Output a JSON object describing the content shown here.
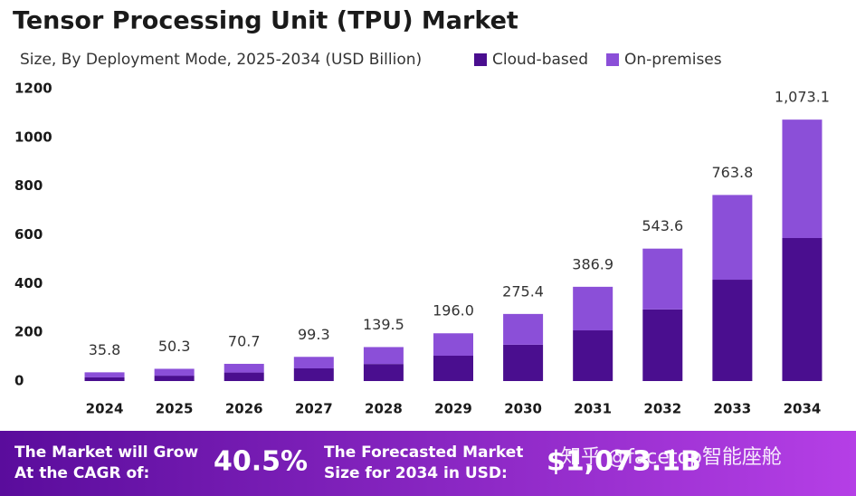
{
  "chart_data": {
    "type": "stacked-bar",
    "title": "Tensor Processing Unit (TPU) Market",
    "subtitle": "Size, By Deployment Mode, 2025-2034 (USD Billion)",
    "categories": [
      "2024",
      "2025",
      "2026",
      "2027",
      "2028",
      "2029",
      "2030",
      "2031",
      "2032",
      "2033",
      "2034"
    ],
    "series": [
      {
        "name": "Cloud-based",
        "color": "#4a0e8f",
        "values": [
          15,
          22,
          35,
          52,
          70,
          104,
          149,
          208,
          294,
          416,
          587
        ]
      },
      {
        "name": "On-premises",
        "color": "#8b4fd8",
        "values": [
          20.8,
          28.3,
          35.7,
          47.3,
          69.5,
          92,
          126.4,
          178.9,
          249.6,
          347.8,
          486.1
        ]
      }
    ],
    "totals": [
      35.8,
      50.3,
      70.7,
      99.3,
      139.5,
      196.0,
      275.4,
      386.9,
      543.6,
      763.8,
      1073.1
    ],
    "total_labels": [
      "35.8",
      "50.3",
      "70.7",
      "99.3",
      "139.5",
      "196.0",
      "275.4",
      "386.9",
      "543.6",
      "763.8",
      "1,073.1"
    ],
    "ylim": [
      0,
      1200
    ],
    "yticks": [
      0,
      200,
      400,
      600,
      800,
      1000,
      1200
    ],
    "grid": false
  },
  "footer": {
    "cagr_text": [
      "The Market will Grow",
      "At the CAGR of:"
    ],
    "cagr_value": "40.5%",
    "forecast_text": [
      "The Forecasted Market",
      "Size for 2034 in USD:"
    ],
    "forecast_value": "$1,073.1B",
    "watermark": "知乎 @facetop智能座舱"
  }
}
